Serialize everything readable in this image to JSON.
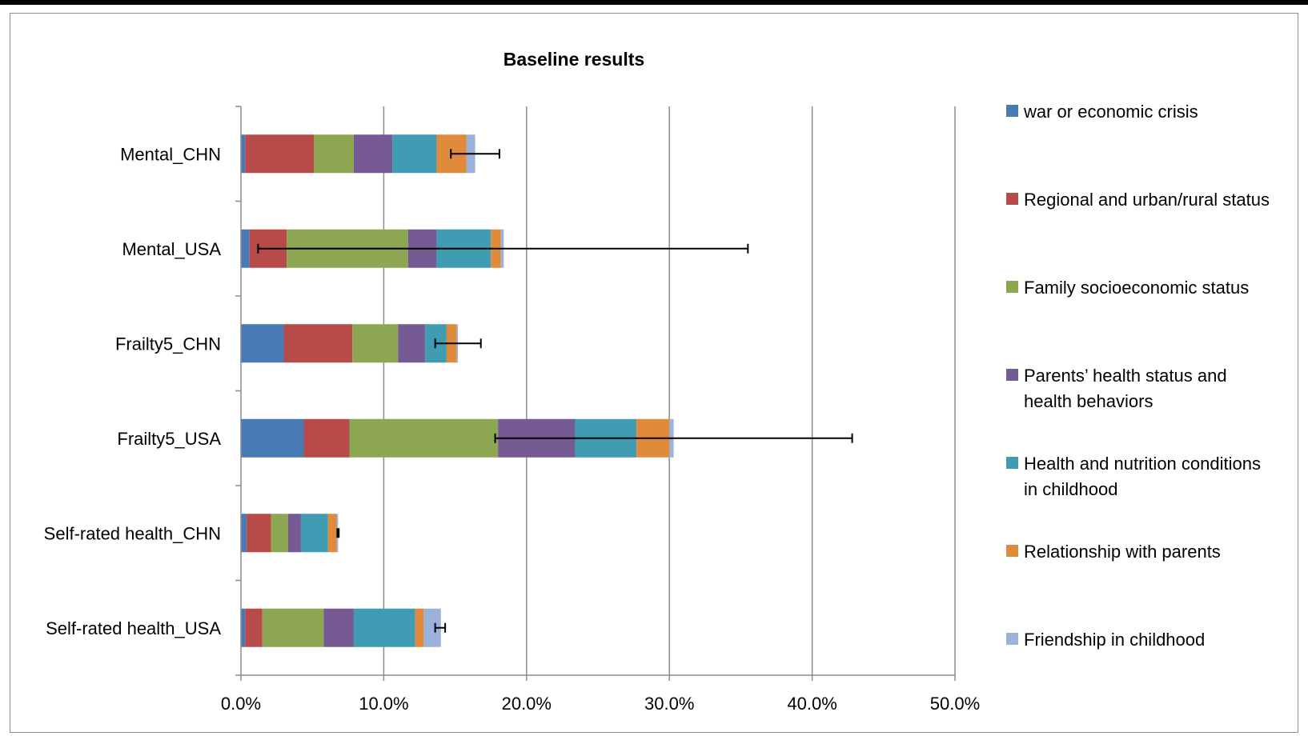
{
  "chart_data": {
    "type": "bar",
    "orientation": "horizontal",
    "stacked": true,
    "title": "Baseline  results",
    "xlabel": "",
    "ylabel": "",
    "xlim": [
      0,
      50
    ],
    "x_ticks": [
      "0.0%",
      "10.0%",
      "20.0%",
      "30.0%",
      "40.0%",
      "50.0%"
    ],
    "x_tick_values": [
      0,
      10,
      20,
      30,
      40,
      50
    ],
    "grid": "vertical major gridlines",
    "legend_position": "right",
    "categories": [
      "Mental_CHN",
      "Mental_USA",
      "Frailty5_CHN",
      "Frailty5_USA",
      "Self-rated health_CHN",
      "Self-rated health_USA"
    ],
    "series": [
      {
        "name": "war or economic crisis",
        "color": "#4a7ab5",
        "values": [
          0.3,
          0.6,
          3.0,
          4.4,
          0.4,
          0.3
        ]
      },
      {
        "name": "Regional and urban/rural status",
        "color": "#b74b49",
        "values": [
          4.8,
          2.6,
          4.8,
          3.2,
          1.7,
          1.2
        ]
      },
      {
        "name": "Family socioeconomic status",
        "color": "#8ca651",
        "values": [
          2.8,
          8.5,
          3.2,
          10.4,
          1.2,
          4.3
        ]
      },
      {
        "name": "Parents’ health status and health behaviors",
        "color": "#755a93",
        "values": [
          2.7,
          2.0,
          1.9,
          5.4,
          0.9,
          2.1
        ]
      },
      {
        "name": "Health and nutrition conditions in childhood",
        "color": "#3f9cb3",
        "values": [
          3.1,
          3.8,
          1.5,
          4.3,
          1.9,
          4.3
        ]
      },
      {
        "name": "Relationship with parents",
        "color": "#e08b3c",
        "values": [
          2.1,
          0.7,
          0.7,
          2.3,
          0.6,
          0.6
        ]
      },
      {
        "name": "Friendship in childhood",
        "color": "#9bb3da",
        "values": [
          0.6,
          0.2,
          0.1,
          0.3,
          0.1,
          1.2
        ]
      }
    ],
    "error_bars": [
      {
        "category": "Mental_CHN",
        "low": 14.7,
        "high": 18.1
      },
      {
        "category": "Mental_USA",
        "low": 1.2,
        "high": 35.5
      },
      {
        "category": "Frailty5_CHN",
        "low": 13.6,
        "high": 16.8
      },
      {
        "category": "Frailty5_USA",
        "low": 17.8,
        "high": 42.8
      },
      {
        "category": "Self-rated health_CHN",
        "low": 6.75,
        "high": 6.85
      },
      {
        "category": "Self-rated health_USA",
        "low": 13.6,
        "high": 14.3
      }
    ]
  }
}
